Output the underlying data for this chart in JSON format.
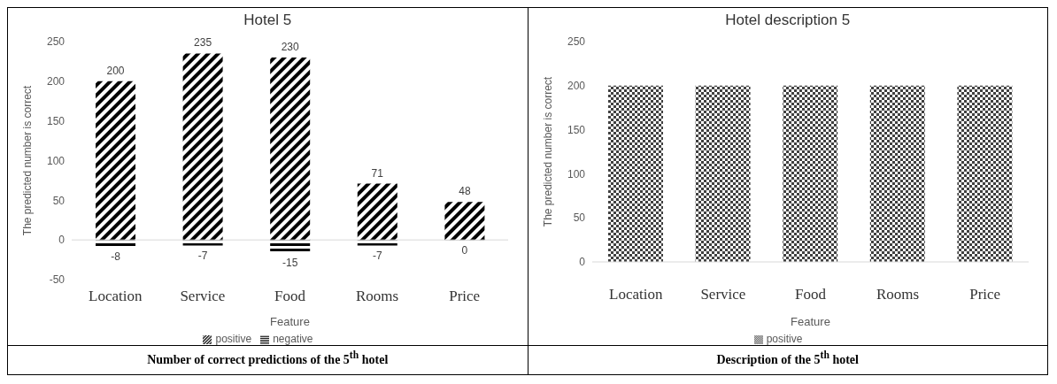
{
  "chart_data": [
    {
      "type": "bar",
      "title": "Hotel 5",
      "xlabel": "Feature",
      "ylabel": "The predicted number is correct",
      "categories": [
        "Location",
        "Service",
        "Food",
        "Rooms",
        "Price"
      ],
      "stacked": true,
      "series": [
        {
          "name": "negative",
          "color": "#000000",
          "values": [
            -8,
            -7,
            -15,
            -7,
            0
          ]
        },
        {
          "name": "positive",
          "color": "#000000",
          "values": [
            200,
            235,
            230,
            71,
            48
          ]
        }
      ],
      "ylim": [
        -50,
        250
      ],
      "yticks": [
        -50,
        0,
        50,
        100,
        150,
        200,
        250
      ],
      "data_labels": true,
      "grid": false,
      "ref_lines": [
        {
          "axis": "y",
          "value": 0,
          "color": "#d9d9d9"
        }
      ],
      "legend": "bottom",
      "annotations": [
        "Number of correct predictions of the 5$^{th}$ hotel"
      ]
    },
    {
      "type": "bar",
      "title": "Hotel description 5",
      "xlabel": "Feature",
      "ylabel": "The predicted number is correct",
      "categories": [
        "Location",
        "Service",
        "Food",
        "Rooms",
        "Price"
      ],
      "series": [
        {
          "name": "positive",
          "color": "#404040",
          "values": [
            200,
            200,
            200,
            200,
            200
          ]
        }
      ],
      "ylim": [
        0,
        250
      ],
      "yticks": [
        0,
        50,
        100,
        150,
        200,
        250
      ],
      "grid": false,
      "legend": "bottom",
      "annotations": [
        "Description of the 5$^{th}$ hotel"
      ]
    }
  ]
}
